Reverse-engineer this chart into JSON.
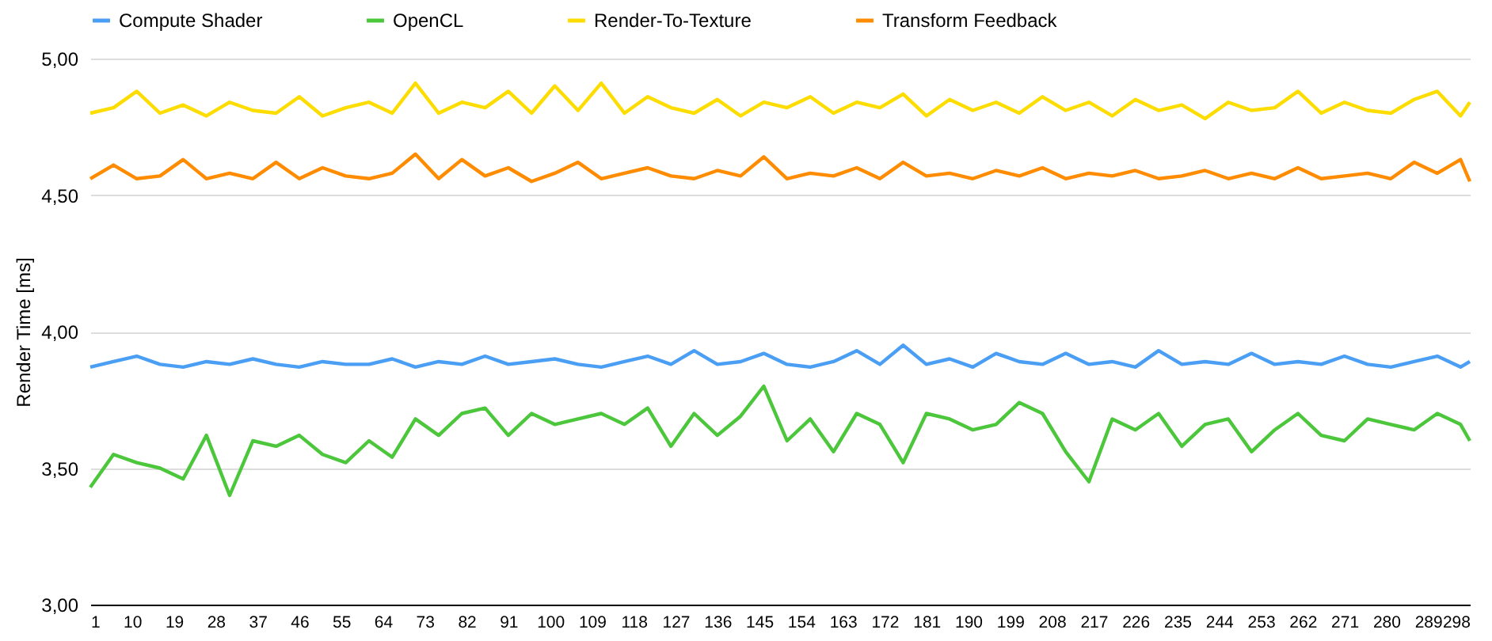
{
  "chart_data": {
    "type": "line",
    "ylabel": "Render Time [ms]",
    "x": [
      1,
      6,
      11,
      16,
      21,
      26,
      31,
      36,
      41,
      46,
      51,
      56,
      61,
      66,
      71,
      76,
      81,
      86,
      91,
      96,
      101,
      106,
      111,
      116,
      121,
      126,
      131,
      136,
      141,
      146,
      151,
      156,
      161,
      166,
      171,
      176,
      181,
      186,
      191,
      196,
      201,
      206,
      211,
      216,
      221,
      226,
      231,
      236,
      241,
      246,
      251,
      256,
      261,
      266,
      271,
      276,
      281,
      286,
      291,
      296,
      298
    ],
    "xlim": [
      1,
      298
    ],
    "xticks": [
      1,
      10,
      19,
      28,
      37,
      46,
      55,
      64,
      73,
      82,
      91,
      100,
      109,
      118,
      127,
      136,
      145,
      154,
      163,
      172,
      181,
      190,
      199,
      208,
      217,
      226,
      235,
      244,
      253,
      262,
      271,
      280,
      289,
      298
    ],
    "ylim": [
      3,
      5
    ],
    "yticks": [
      {
        "value": 3,
        "label": "3,00"
      },
      {
        "value": 3.5,
        "label": "3,50"
      },
      {
        "value": 4,
        "label": "4,00"
      },
      {
        "value": 4.5,
        "label": "4,50"
      },
      {
        "value": 5,
        "label": "5,00"
      }
    ],
    "grid": "y",
    "legend": "top",
    "marker": "none",
    "line_style": "solid",
    "series": [
      {
        "name": "Compute Shader",
        "color": "#4a9ff5",
        "values": [
          3.87,
          3.89,
          3.91,
          3.88,
          3.87,
          3.89,
          3.88,
          3.9,
          3.88,
          3.87,
          3.89,
          3.88,
          3.88,
          3.9,
          3.87,
          3.89,
          3.88,
          3.91,
          3.88,
          3.89,
          3.9,
          3.88,
          3.87,
          3.89,
          3.91,
          3.88,
          3.93,
          3.88,
          3.89,
          3.92,
          3.88,
          3.87,
          3.89,
          3.93,
          3.88,
          3.95,
          3.88,
          3.9,
          3.87,
          3.92,
          3.89,
          3.88,
          3.92,
          3.88,
          3.89,
          3.87,
          3.93,
          3.88,
          3.89,
          3.88,
          3.92,
          3.88,
          3.89,
          3.88,
          3.91,
          3.88,
          3.87,
          3.89,
          3.91,
          3.87,
          3.89
        ]
      },
      {
        "name": "OpenCL",
        "color": "#4cc73c",
        "values": [
          3.43,
          3.55,
          3.52,
          3.5,
          3.46,
          3.62,
          3.4,
          3.6,
          3.58,
          3.62,
          3.55,
          3.52,
          3.6,
          3.54,
          3.68,
          3.62,
          3.7,
          3.72,
          3.62,
          3.7,
          3.66,
          3.68,
          3.7,
          3.66,
          3.72,
          3.58,
          3.7,
          3.62,
          3.69,
          3.8,
          3.6,
          3.68,
          3.56,
          3.7,
          3.66,
          3.52,
          3.7,
          3.68,
          3.64,
          3.66,
          3.74,
          3.7,
          3.56,
          3.45,
          3.68,
          3.64,
          3.7,
          3.58,
          3.66,
          3.68,
          3.56,
          3.64,
          3.7,
          3.62,
          3.6,
          3.68,
          3.66,
          3.64,
          3.7,
          3.66,
          3.6
        ]
      },
      {
        "name": "Render-To-Texture",
        "color": "#fddc00",
        "values": [
          4.8,
          4.82,
          4.88,
          4.8,
          4.83,
          4.79,
          4.84,
          4.81,
          4.8,
          4.86,
          4.79,
          4.82,
          4.84,
          4.8,
          4.91,
          4.8,
          4.84,
          4.82,
          4.88,
          4.8,
          4.9,
          4.81,
          4.91,
          4.8,
          4.86,
          4.82,
          4.8,
          4.85,
          4.79,
          4.84,
          4.82,
          4.86,
          4.8,
          4.84,
          4.82,
          4.87,
          4.79,
          4.85,
          4.81,
          4.84,
          4.8,
          4.86,
          4.81,
          4.84,
          4.79,
          4.85,
          4.81,
          4.83,
          4.78,
          4.84,
          4.81,
          4.82,
          4.88,
          4.8,
          4.84,
          4.81,
          4.8,
          4.85,
          4.88,
          4.79,
          4.84
        ]
      },
      {
        "name": "Transform Feedback",
        "color": "#ff8c00",
        "values": [
          4.56,
          4.61,
          4.56,
          4.57,
          4.63,
          4.56,
          4.58,
          4.56,
          4.62,
          4.56,
          4.6,
          4.57,
          4.56,
          4.58,
          4.65,
          4.56,
          4.63,
          4.57,
          4.6,
          4.55,
          4.58,
          4.62,
          4.56,
          4.58,
          4.6,
          4.57,
          4.56,
          4.59,
          4.57,
          4.64,
          4.56,
          4.58,
          4.57,
          4.6,
          4.56,
          4.62,
          4.57,
          4.58,
          4.56,
          4.59,
          4.57,
          4.6,
          4.56,
          4.58,
          4.57,
          4.59,
          4.56,
          4.57,
          4.59,
          4.56,
          4.58,
          4.56,
          4.6,
          4.56,
          4.57,
          4.58,
          4.56,
          4.62,
          4.58,
          4.63,
          4.55
        ]
      }
    ]
  }
}
